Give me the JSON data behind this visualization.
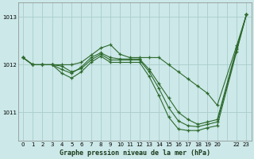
{
  "title": "Graphe pression niveau de la mer (hPa)",
  "bg_color": "#cce8e8",
  "grid_color": "#aacccc",
  "line_color": "#2d6a2d",
  "xlim": [
    -0.5,
    23.5
  ],
  "ylim": [
    1010.4,
    1013.3
  ],
  "yticks": [
    1011,
    1012,
    1013
  ],
  "xtick_labels": [
    "0",
    "1",
    "2",
    "3",
    "4",
    "5",
    "6",
    "7",
    "8",
    "9",
    "10",
    "11",
    "12",
    "13",
    "14",
    "15",
    "16",
    "17",
    "18",
    "19",
    "20",
    "",
    "22",
    "23"
  ],
  "series_upper": [
    [
      0,
      1012.15
    ],
    [
      1,
      1012.0
    ],
    [
      2,
      1012.0
    ],
    [
      3,
      1012.0
    ],
    [
      4,
      1012.0
    ],
    [
      5,
      1012.0
    ],
    [
      6,
      1012.05
    ],
    [
      7,
      1012.2
    ],
    [
      8,
      1012.35
    ],
    [
      9,
      1012.42
    ],
    [
      10,
      1012.22
    ],
    [
      11,
      1012.15
    ],
    [
      12,
      1012.15
    ],
    [
      13,
      1012.15
    ],
    [
      14,
      1012.15
    ],
    [
      15,
      1012.0
    ],
    [
      16,
      1011.85
    ],
    [
      17,
      1011.7
    ],
    [
      18,
      1011.55
    ],
    [
      19,
      1011.4
    ],
    [
      20,
      1011.15
    ],
    [
      22,
      1012.4
    ],
    [
      23,
      1013.05
    ]
  ],
  "series_mid1": [
    [
      0,
      1012.15
    ],
    [
      1,
      1012.0
    ],
    [
      2,
      1012.0
    ],
    [
      3,
      1012.0
    ],
    [
      4,
      1011.9
    ],
    [
      5,
      1011.82
    ],
    [
      6,
      1011.95
    ],
    [
      7,
      1012.15
    ],
    [
      8,
      1012.25
    ],
    [
      9,
      1012.15
    ],
    [
      10,
      1012.12
    ],
    [
      11,
      1012.12
    ],
    [
      12,
      1012.12
    ],
    [
      13,
      1011.9
    ],
    [
      14,
      1011.6
    ],
    [
      15,
      1011.3
    ],
    [
      16,
      1011.0
    ],
    [
      17,
      1010.85
    ],
    [
      18,
      1010.75
    ],
    [
      19,
      1010.8
    ],
    [
      20,
      1010.85
    ],
    [
      22,
      1012.35
    ],
    [
      23,
      1013.05
    ]
  ],
  "series_mid2": [
    [
      0,
      1012.15
    ],
    [
      1,
      1012.0
    ],
    [
      2,
      1012.0
    ],
    [
      3,
      1012.0
    ],
    [
      4,
      1011.97
    ],
    [
      5,
      1011.85
    ],
    [
      6,
      1011.92
    ],
    [
      7,
      1012.1
    ],
    [
      8,
      1012.22
    ],
    [
      9,
      1012.1
    ],
    [
      10,
      1012.1
    ],
    [
      11,
      1012.1
    ],
    [
      12,
      1012.1
    ],
    [
      13,
      1011.85
    ],
    [
      14,
      1011.5
    ],
    [
      15,
      1011.1
    ],
    [
      16,
      1010.82
    ],
    [
      17,
      1010.72
    ],
    [
      18,
      1010.7
    ],
    [
      19,
      1010.75
    ],
    [
      20,
      1010.8
    ],
    [
      22,
      1012.32
    ],
    [
      23,
      1013.05
    ]
  ],
  "series_lower": [
    [
      0,
      1012.15
    ],
    [
      1,
      1012.0
    ],
    [
      2,
      1012.0
    ],
    [
      3,
      1012.0
    ],
    [
      4,
      1011.82
    ],
    [
      5,
      1011.72
    ],
    [
      6,
      1011.85
    ],
    [
      7,
      1012.05
    ],
    [
      8,
      1012.18
    ],
    [
      9,
      1012.05
    ],
    [
      10,
      1012.05
    ],
    [
      11,
      1012.05
    ],
    [
      12,
      1012.05
    ],
    [
      13,
      1011.75
    ],
    [
      14,
      1011.35
    ],
    [
      15,
      1010.9
    ],
    [
      16,
      1010.65
    ],
    [
      17,
      1010.62
    ],
    [
      18,
      1010.62
    ],
    [
      19,
      1010.68
    ],
    [
      20,
      1010.72
    ],
    [
      22,
      1012.28
    ],
    [
      23,
      1013.05
    ]
  ]
}
